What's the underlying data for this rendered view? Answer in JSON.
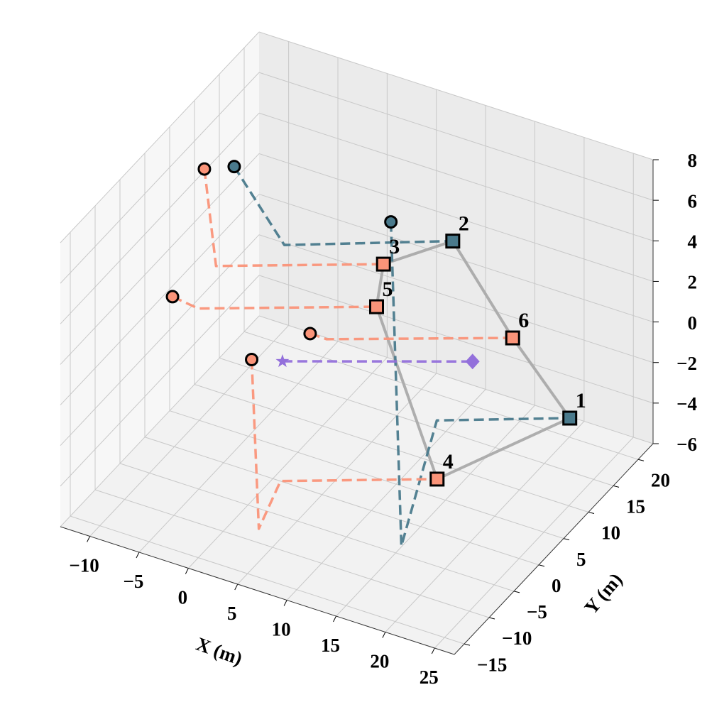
{
  "chart_data": {
    "type": "line3d",
    "xlabel": "X (m)",
    "ylabel": "Y (m)",
    "xlim": [
      -13,
      27
    ],
    "ylim": [
      -17,
      23
    ],
    "zlim": [
      -6,
      8
    ],
    "xticks": [
      {
        "value": -10,
        "label": "−10"
      },
      {
        "value": -5,
        "label": "−5"
      },
      0,
      5,
      10,
      15,
      20,
      25
    ],
    "yticks": [
      {
        "value": -15,
        "label": "−15"
      },
      {
        "value": -10,
        "label": "−10"
      },
      {
        "value": -5,
        "label": "−5"
      },
      0,
      5,
      10,
      15,
      20
    ],
    "zticks": [
      {
        "value": -6,
        "label": "−6"
      },
      {
        "value": -4,
        "label": "−4"
      },
      {
        "value": -2,
        "label": "−2"
      },
      0,
      2,
      4,
      6,
      8
    ],
    "grid": true,
    "series": [
      {
        "color": "#aaaaaa",
        "style": "solid",
        "x": [
          10.7,
          18.8,
          24.6,
          19.2,
          7.0,
          7.7,
          10.7
        ],
        "y": [
          15,
          11,
          11,
          -5,
          7,
          7,
          15
        ],
        "z": [
          3.5,
          1.04,
          -2.0,
          -1.7,
          1.76,
          3.97,
          3.5
        ]
      },
      {
        "color": "#4a7a8c",
        "style": "dashed",
        "start_marker": "circle",
        "end_marker": "square",
        "end_label": "2",
        "x": [
          -12.5,
          -6.4,
          10.7
        ],
        "y": [
          17,
          15,
          15
        ],
        "z": [
          3.0,
          0.61,
          3.5
        ]
      },
      {
        "color": "#4a7a8c",
        "style": "dashed",
        "start_marker": "circle",
        "end_marker": "square",
        "end_label": "1",
        "x": [
          2.4,
          7.5,
          11.1,
          24.6
        ],
        "y": [
          19,
          11,
          11,
          11
        ],
        "z": [
          2.1,
          -11.0,
          -4.24,
          -2.0
        ]
      },
      {
        "color": "#fa9479",
        "style": "dashed",
        "start_marker": "circle",
        "end_marker": "square",
        "end_label": "3",
        "x": [
          -12.5,
          -9.3,
          7.7
        ],
        "y": [
          11,
          7,
          7
        ],
        "z": [
          4.44,
          1.2,
          3.97
        ]
      },
      {
        "color": "#fa9479",
        "style": "dashed",
        "start_marker": "circle",
        "end_marker": "square",
        "end_label": "5",
        "x": [
          -11.7,
          -11.1,
          7.0
        ],
        "y": [
          3,
          7,
          7
        ],
        "z": [
          0.35,
          -1.18,
          1.76
        ]
      },
      {
        "color": "#fa9479",
        "style": "dashed",
        "start_marker": "circle",
        "end_marker": "square",
        "end_label": "6",
        "x": [
          -5.8,
          -0.1,
          18.8
        ],
        "y": [
          19,
          11,
          11
        ],
        "z": [
          -4.7,
          -2.0,
          1.04
        ]
      },
      {
        "color": "#fa9479",
        "style": "dashed",
        "start_marker": "circle",
        "end_marker": "square",
        "end_label": "4",
        "x": [
          -7.7,
          1.1,
          3.3,
          19.2
        ],
        "y": [
          11,
          -5,
          -5,
          -5
        ],
        "z": [
          -4.2,
          -7.0,
          -4.3,
          -1.7
        ]
      },
      {
        "color": "#9370db",
        "style": "dashed",
        "start_marker": "star",
        "end_marker": "diamond",
        "x": [
          -7.6,
          11.7
        ],
        "y": [
          17,
          17
        ],
        "z": [
          -5.83,
          -2.8
        ]
      }
    ]
  }
}
